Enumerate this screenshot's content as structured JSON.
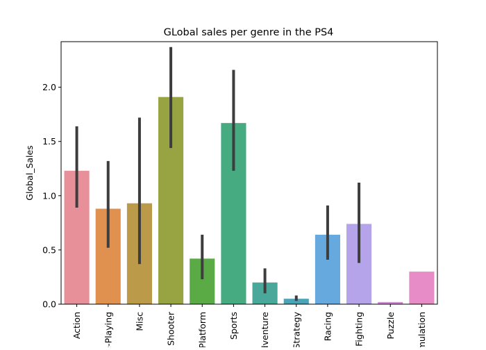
{
  "chart_data": {
    "type": "bar",
    "title": "GLobal sales per genre in the PS4",
    "xlabel": "",
    "ylabel": "Global_Sales",
    "categories": [
      "Action",
      "Role-Playing",
      "Misc",
      "Shooter",
      "Platform",
      "Sports",
      "Adventure",
      "Strategy",
      "Racing",
      "Fighting",
      "Puzzle",
      "Simulation"
    ],
    "values": [
      1.23,
      0.88,
      0.93,
      1.91,
      0.42,
      1.67,
      0.2,
      0.05,
      0.64,
      0.74,
      0.02,
      0.3
    ],
    "error_low": [
      0.89,
      0.52,
      0.37,
      1.44,
      0.23,
      1.23,
      0.1,
      0.03,
      0.41,
      0.38,
      0.02,
      0.3
    ],
    "error_high": [
      1.64,
      1.32,
      1.72,
      2.37,
      0.64,
      2.16,
      0.33,
      0.08,
      0.91,
      1.12,
      0.02,
      0.3
    ],
    "colors": [
      "#e8909a",
      "#e0914f",
      "#bb9a49",
      "#98a442",
      "#5aaa46",
      "#47ab82",
      "#4aa89b",
      "#4aa4b7",
      "#66a9de",
      "#b5a4e9",
      "#dd86e6",
      "#e88cc7"
    ],
    "error_color": "#3d3d3d",
    "ylim": [
      0,
      2.42
    ],
    "yticks": [
      0.0,
      0.5,
      1.0,
      1.5,
      2.0
    ],
    "ytick_labels": [
      "0.0",
      "0.5",
      "1.0",
      "1.5",
      "2.0"
    ],
    "grid": false,
    "legend": "none"
  }
}
